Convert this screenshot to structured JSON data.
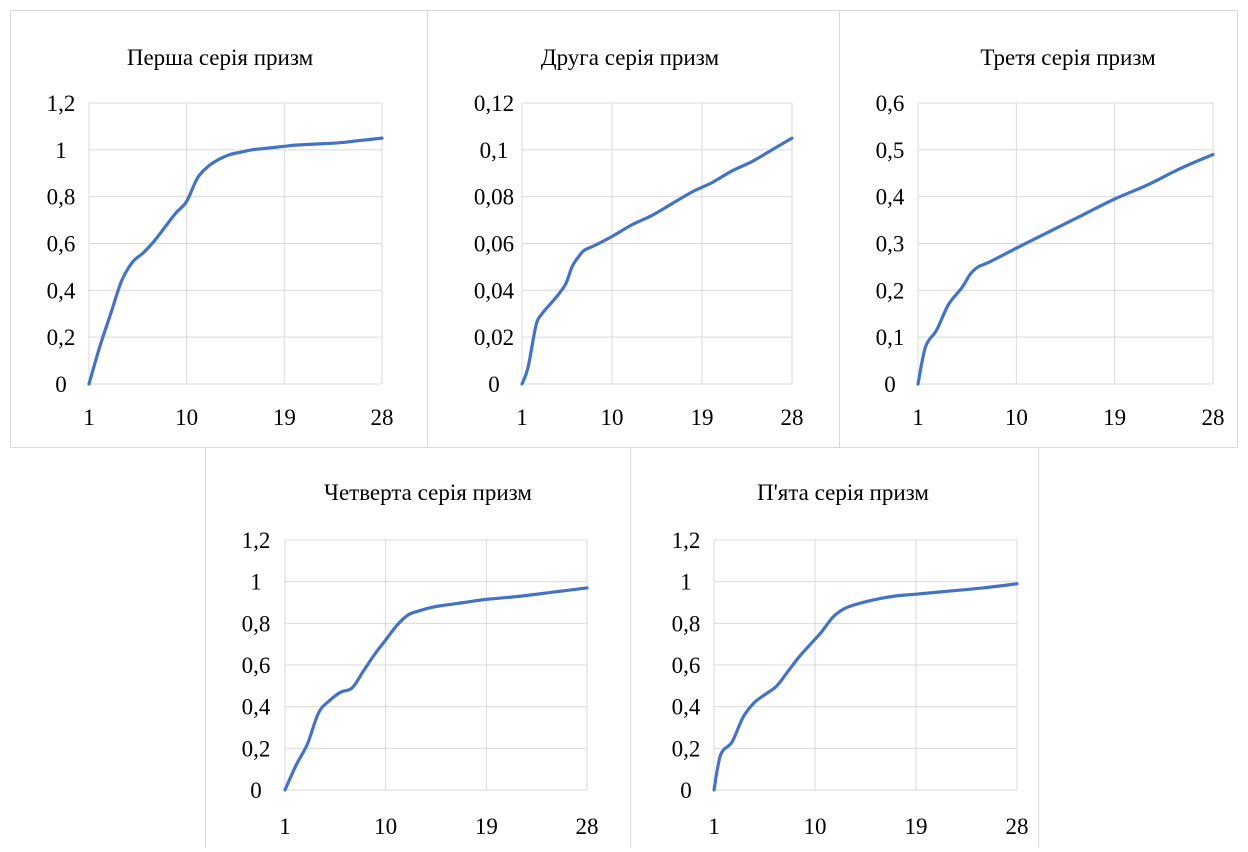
{
  "chart_data": [
    {
      "type": "line",
      "title": "Перша серія призм",
      "x_ticks": [
        "1",
        "10",
        "19",
        "28"
      ],
      "y_ticks": [
        "0",
        "0,2",
        "0,4",
        "0,6",
        "0,8",
        "1",
        "1,2"
      ],
      "xlim": [
        1,
        28
      ],
      "ylim": [
        0,
        1.2
      ],
      "grid": true,
      "color": "#4472C4",
      "series": [
        {
          "x": [
            1,
            2,
            3,
            4,
            5,
            6,
            7,
            8,
            9,
            10,
            11,
            12,
            13,
            14,
            15,
            16,
            17,
            18,
            19,
            20,
            22,
            24,
            26,
            28
          ],
          "values": [
            0,
            0.16,
            0.3,
            0.44,
            0.52,
            0.56,
            0.61,
            0.67,
            0.73,
            0.78,
            0.88,
            0.93,
            0.96,
            0.98,
            0.99,
            1.0,
            1.005,
            1.01,
            1.015,
            1.02,
            1.025,
            1.03,
            1.04,
            1.05
          ]
        }
      ]
    },
    {
      "type": "line",
      "title": "Друга серія призм",
      "x_ticks": [
        "1",
        "10",
        "19",
        "28"
      ],
      "y_ticks": [
        "0",
        "0,02",
        "0,04",
        "0,06",
        "0,08",
        "0,1",
        "0,12"
      ],
      "xlim": [
        1,
        28
      ],
      "ylim": [
        0,
        0.12
      ],
      "grid": true,
      "color": "#4472C4",
      "series": [
        {
          "x": [
            1,
            1.6,
            2.4,
            3,
            3.8,
            4.6,
            5.4,
            6,
            6.6,
            7.2,
            8.2,
            10,
            12,
            14,
            16,
            18,
            20,
            22,
            24,
            26,
            28
          ],
          "values": [
            0,
            0.007,
            0.025,
            0.03,
            0.034,
            0.038,
            0.043,
            0.05,
            0.054,
            0.057,
            0.059,
            0.063,
            0.068,
            0.072,
            0.077,
            0.082,
            0.086,
            0.091,
            0.095,
            0.1,
            0.105
          ]
        }
      ]
    },
    {
      "type": "line",
      "title": "Третя серія призм",
      "x_ticks": [
        "1",
        "10",
        "19",
        "28"
      ],
      "y_ticks": [
        "0",
        "0,1",
        "0,2",
        "0,3",
        "0,4",
        "0,5",
        "0,6"
      ],
      "xlim": [
        1,
        28
      ],
      "ylim": [
        0,
        0.6
      ],
      "grid": true,
      "color": "#4472C4",
      "series": [
        {
          "x": [
            1,
            1.7,
            2.7,
            3.8,
            5,
            5.8,
            6.5,
            7.5,
            10,
            13,
            16,
            19,
            22,
            25,
            28
          ],
          "values": [
            0,
            0.08,
            0.115,
            0.17,
            0.205,
            0.235,
            0.25,
            0.26,
            0.29,
            0.325,
            0.36,
            0.395,
            0.425,
            0.46,
            0.49
          ]
        }
      ]
    },
    {
      "type": "line",
      "title": "Четверта серія призм",
      "x_ticks": [
        "1",
        "10",
        "19",
        "28"
      ],
      "y_ticks": [
        "0",
        "0,2",
        "0,4",
        "0,6",
        "0,8",
        "1",
        "1,2"
      ],
      "xlim": [
        1,
        28
      ],
      "ylim": [
        0,
        1.2
      ],
      "grid": true,
      "color": "#4472C4",
      "series": [
        {
          "x": [
            1,
            2,
            3,
            4,
            5,
            6,
            7,
            8,
            9,
            10,
            11,
            12,
            13,
            14,
            15,
            17,
            19,
            22,
            25,
            28
          ],
          "values": [
            0,
            0.12,
            0.22,
            0.37,
            0.43,
            0.47,
            0.49,
            0.57,
            0.65,
            0.72,
            0.79,
            0.84,
            0.86,
            0.875,
            0.885,
            0.9,
            0.915,
            0.93,
            0.95,
            0.97
          ]
        }
      ]
    },
    {
      "type": "line",
      "title": "П'ята серія призм",
      "x_ticks": [
        "1",
        "10",
        "19",
        "28"
      ],
      "y_ticks": [
        "0",
        "0,2",
        "0,4",
        "0,6",
        "0,8",
        "1",
        "1,2"
      ],
      "xlim": [
        1,
        28
      ],
      "ylim": [
        0,
        1.2
      ],
      "grid": true,
      "color": "#4472C4",
      "series": [
        {
          "x": [
            1,
            1.6,
            2.6,
            3.6,
            4.6,
            5.6,
            6.6,
            7.6,
            8.6,
            9.6,
            10.6,
            11.6,
            12.6,
            13.6,
            15,
            17,
            19,
            22,
            25,
            28
          ],
          "values": [
            0,
            0.17,
            0.23,
            0.35,
            0.42,
            0.46,
            0.5,
            0.57,
            0.64,
            0.7,
            0.76,
            0.83,
            0.87,
            0.89,
            0.91,
            0.93,
            0.94,
            0.955,
            0.97,
            0.99
          ]
        }
      ]
    }
  ]
}
